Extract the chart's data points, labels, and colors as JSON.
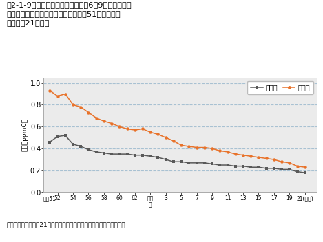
{
  "title_line1": "図2-1-9　非メタン炭化水素の午前6～9時における年",
  "title_line2": "　　　　平均値の経年変化推移（昭和51年度～平成",
  "title_line3": "　　　　21年度）",
  "ylabel": "濃度（ppmC）",
  "caption": "資料：環境省「平成21年度大気汚染状況について（報道発表資料）」",
  "xtick_labels": [
    "昭和51",
    "52",
    "54",
    "56",
    "58",
    "60",
    "62",
    "平成\n元",
    "3",
    "5",
    "7",
    "9",
    "11",
    "13",
    "15",
    "17",
    "19",
    "21(年度)"
  ],
  "xtick_positions": [
    1976,
    1977,
    1979,
    1981,
    1983,
    1985,
    1987,
    1989,
    1991,
    1993,
    1995,
    1997,
    1999,
    2001,
    2003,
    2005,
    2007,
    2009
  ],
  "ylim": [
    0.0,
    1.05
  ],
  "yticks": [
    0.0,
    0.2,
    0.4,
    0.6,
    0.8,
    1.0
  ],
  "ytick_labels": [
    "0.0",
    "0.2",
    "0.4",
    "0.6",
    "0.8",
    "1.0"
  ],
  "general_label": "一般局",
  "jihai_label": "自排局",
  "general_color": "#595959",
  "jihai_color": "#E8722A",
  "general_data_years": [
    1976,
    1977,
    1978,
    1979,
    1980,
    1981,
    1982,
    1983,
    1984,
    1985,
    1986,
    1987,
    1988,
    1989,
    1990,
    1991,
    1992,
    1993,
    1994,
    1995,
    1996,
    1997,
    1998,
    1999,
    2000,
    2001,
    2002,
    2003,
    2004,
    2005,
    2006,
    2007,
    2008,
    2009
  ],
  "general_data_values": [
    0.46,
    0.51,
    0.52,
    0.44,
    0.42,
    0.39,
    0.37,
    0.36,
    0.35,
    0.35,
    0.35,
    0.34,
    0.34,
    0.33,
    0.32,
    0.3,
    0.28,
    0.28,
    0.27,
    0.27,
    0.27,
    0.26,
    0.25,
    0.25,
    0.24,
    0.24,
    0.23,
    0.23,
    0.22,
    0.22,
    0.21,
    0.21,
    0.19,
    0.18
  ],
  "jihai_data_years": [
    1976,
    1977,
    1978,
    1979,
    1980,
    1981,
    1982,
    1983,
    1984,
    1985,
    1986,
    1987,
    1988,
    1989,
    1990,
    1991,
    1992,
    1993,
    1994,
    1995,
    1996,
    1997,
    1998,
    1999,
    2000,
    2001,
    2002,
    2003,
    2004,
    2005,
    2006,
    2007,
    2008,
    2009
  ],
  "jihai_data_values": [
    0.93,
    0.88,
    0.9,
    0.8,
    0.78,
    0.73,
    0.68,
    0.65,
    0.63,
    0.6,
    0.58,
    0.57,
    0.58,
    0.55,
    0.53,
    0.5,
    0.47,
    0.43,
    0.42,
    0.41,
    0.41,
    0.4,
    0.38,
    0.37,
    0.35,
    0.34,
    0.33,
    0.32,
    0.31,
    0.3,
    0.28,
    0.27,
    0.24,
    0.23
  ],
  "plot_facecolor": "#ebebeb",
  "fig_facecolor": "#ffffff",
  "grid_color": "#6699bb",
  "grid_alpha": 0.5,
  "xlim_left": 1975.2,
  "xlim_right": 2010.5
}
